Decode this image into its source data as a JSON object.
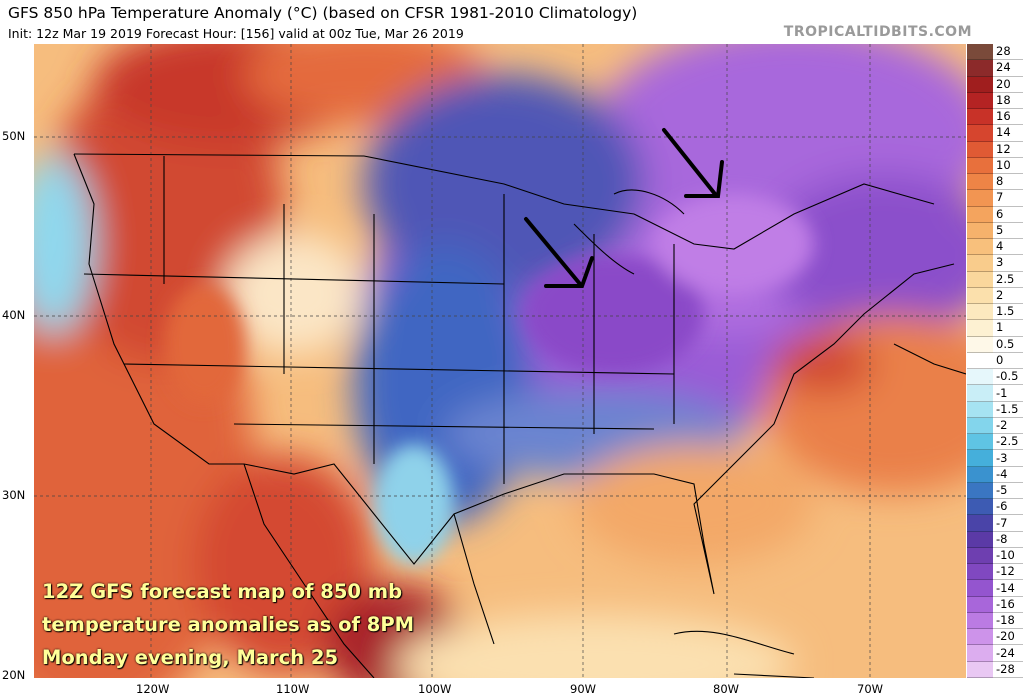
{
  "header": {
    "title": "GFS 850 hPa Temperature Anomaly (°C) (based on CFSR 1981-2010 Climatology)",
    "subtitle": "Init: 12z Mar 19 2019   Forecast Hour: [156]   valid at 00z Tue, Mar 26 2019",
    "brand": "TROPICALTIDBITS.COM"
  },
  "map": {
    "lat_labels": [
      "50N",
      "40N",
      "30N",
      "20N"
    ],
    "lon_labels": [
      "120W",
      "110W",
      "100W",
      "90W",
      "80W",
      "70W"
    ],
    "arrows": [
      "arrow-upper-midwest",
      "arrow-great-lakes-east"
    ],
    "caption_lines": [
      "12Z GFS forecast map of 850 mb",
      "temperature anomalies as of 8PM",
      "Monday evening, March 25"
    ]
  },
  "colorbar": {
    "labels": [
      "28",
      "24",
      "20",
      "18",
      "16",
      "14",
      "12",
      "10",
      "8",
      "7",
      "6",
      "5",
      "4",
      "3",
      "2.5",
      "2",
      "1.5",
      "1",
      "0.5",
      "0",
      "-0.5",
      "-1",
      "-1.5",
      "-2",
      "-2.5",
      "-3",
      "-4",
      "-5",
      "-6",
      "-7",
      "-8",
      "-10",
      "-12",
      "-14",
      "-16",
      "-18",
      "-20",
      "-24",
      "-28"
    ],
    "colors": [
      "#7a4a3a",
      "#8c2a2a",
      "#a01e1e",
      "#b42323",
      "#c83228",
      "#d6452e",
      "#e05a34",
      "#e8703c",
      "#ee8446",
      "#f29552",
      "#f4a45e",
      "#f6b26c",
      "#f8c07c",
      "#f9cc8c",
      "#fad79c",
      "#fbe0ac",
      "#fce9bf",
      "#fdf1d2",
      "#fef8e8",
      "#ffffff",
      "#e6f7fb",
      "#c9eef7",
      "#a6e3f2",
      "#83d5ec",
      "#5fc4e4",
      "#45afdb",
      "#3a92cf",
      "#3a76c2",
      "#3d5bb3",
      "#4a44a8",
      "#5b3aa6",
      "#6e3fb0",
      "#8048c0",
      "#9455cf",
      "#a866da",
      "#bb7be3",
      "#cd93ea",
      "#dcadef",
      "#e9c8f3"
    ]
  }
}
